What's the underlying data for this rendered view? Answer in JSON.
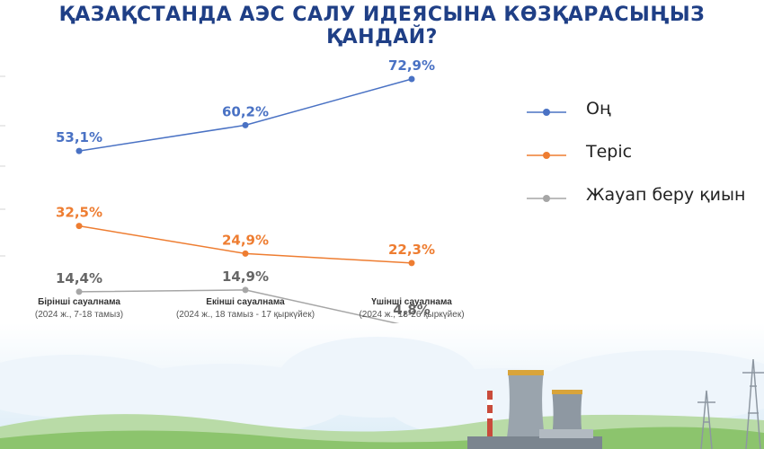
{
  "title": "ҚАЗАҚСТАНДА АЭС САЛУ ИДЕЯСЫНА КӨЗҚАРАСЫҢЫЗ ҚАНДАЙ?",
  "colors": {
    "title": "#1f3f86",
    "positive": "#4a72c4",
    "negative": "#ee7d31",
    "hard": "#a6a6a6"
  },
  "chart_data": {
    "type": "line",
    "title": "ҚАЗАҚСТАНДА АЭС САЛУ ИДЕЯСЫНА КӨЗҚАРАСЫҢЫЗ ҚАНДАЙ?",
    "categories": [
      {
        "label": "Бірінші сауалнама",
        "sub": "(2024 ж., 7-18 тамыз)"
      },
      {
        "label": "Екінші сауалнама",
        "sub": "(2024 ж., 18 тамыз - 17 қыркүйек)"
      },
      {
        "label": "Үшінші сауалнама",
        "sub": "(2024 ж., 13-26 қыркүйек)"
      }
    ],
    "series": [
      {
        "name": "Оң",
        "color": "#4a72c4",
        "values": [
          53.1,
          60.2,
          72.9
        ],
        "labels": [
          "53,1%",
          "60,2%",
          "72,9%"
        ]
      },
      {
        "name": "Теріс",
        "color": "#ee7d31",
        "values": [
          32.5,
          24.9,
          22.3
        ],
        "labels": [
          "32,5%",
          "24,9%",
          "22,3%"
        ]
      },
      {
        "name": "Жауап беру қиын",
        "color": "#a6a6a6",
        "values": [
          14.4,
          14.9,
          4.8
        ],
        "labels": [
          "14,4%",
          "14,9%",
          "4,8%"
        ]
      }
    ],
    "legend": "right",
    "grid": false
  }
}
